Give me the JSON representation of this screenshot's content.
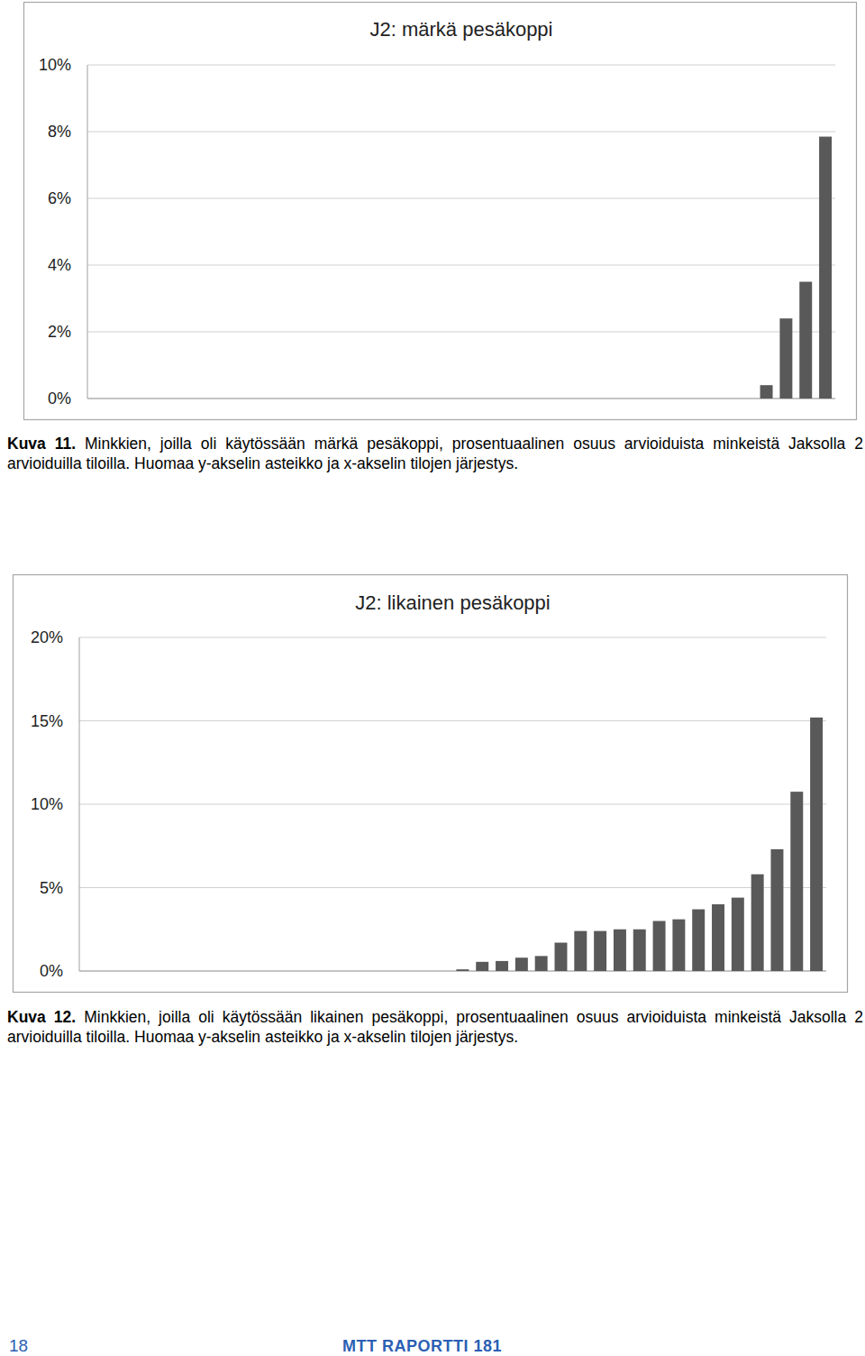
{
  "chart_data": [
    {
      "type": "bar",
      "title": "J2: märkä pesäkoppi",
      "categories": [
        null,
        null,
        null,
        null,
        null,
        null,
        null,
        null,
        null,
        null,
        null,
        null,
        null,
        null,
        null,
        null,
        null,
        null,
        null,
        null,
        null,
        null,
        null,
        null,
        null,
        null,
        null,
        null,
        null,
        null,
        null,
        null,
        null,
        null,
        null,
        null,
        null,
        null
      ],
      "values": [
        0,
        0,
        0,
        0,
        0,
        0,
        0,
        0,
        0,
        0,
        0,
        0,
        0,
        0,
        0,
        0,
        0,
        0,
        0,
        0,
        0,
        0,
        0,
        0,
        0,
        0,
        0,
        0,
        0,
        0,
        0,
        0,
        0,
        0,
        0.4,
        2.4,
        3.5,
        7.85
      ],
      "color": "#595959",
      "ylim": [
        0,
        10
      ],
      "yticks": [
        {
          "value": 0,
          "label": "0%"
        },
        {
          "value": 2,
          "label": "2%"
        },
        {
          "value": 4,
          "label": "4%"
        },
        {
          "value": 6,
          "label": "6%"
        },
        {
          "value": 8,
          "label": "8%"
        },
        {
          "value": 10,
          "label": "10%"
        }
      ],
      "grid": true,
      "tick_labels": "y"
    },
    {
      "type": "bar",
      "title": "J2: likainen pesäkoppi",
      "categories": [
        null,
        null,
        null,
        null,
        null,
        null,
        null,
        null,
        null,
        null,
        null,
        null,
        null,
        null,
        null,
        null,
        null,
        null,
        null,
        null,
        null,
        null,
        null,
        null,
        null,
        null,
        null,
        null,
        null,
        null,
        null,
        null,
        null,
        null,
        null,
        null,
        null,
        null
      ],
      "values": [
        0,
        0,
        0,
        0,
        0,
        0,
        0,
        0,
        0,
        0,
        0,
        0,
        0,
        0,
        0,
        0,
        0,
        0,
        0,
        0.1,
        0.55,
        0.6,
        0.8,
        0.9,
        1.7,
        2.4,
        2.4,
        2.5,
        2.5,
        3.0,
        3.1,
        3.7,
        4.0,
        4.4,
        5.8,
        7.3,
        10.75,
        15.2
      ],
      "color": "#595959",
      "ylim": [
        0,
        20
      ],
      "yticks": [
        {
          "value": 0,
          "label": "0%"
        },
        {
          "value": 5,
          "label": "5%"
        },
        {
          "value": 10,
          "label": "10%"
        },
        {
          "value": 15,
          "label": "15%"
        },
        {
          "value": 20,
          "label": "20%"
        }
      ],
      "grid": true,
      "tick_labels": "y"
    }
  ],
  "captions": [
    {
      "label": "Kuva 11.",
      "text": "Minkkien, joilla oli käytössään märkä pesäkoppi, prosentuaalinen osuus arvioiduista minkeistä Jaksolla 2 arvioiduilla tiloilla. Huomaa y-akselin asteikko ja x-akselin tilojen järjestys."
    },
    {
      "label": "Kuva 12.",
      "text": "Minkkien, joilla oli käytössään likainen pesäkoppi, prosentuaalinen osuus arvioiduista minkeistä Jaksolla 2 arvioiduilla tiloilla. Huomaa y-akselin asteikko ja x-akselin tilojen järjestys."
    }
  ],
  "footer": {
    "page_number": "18",
    "publication": "MTT RAPORTTI 181"
  }
}
